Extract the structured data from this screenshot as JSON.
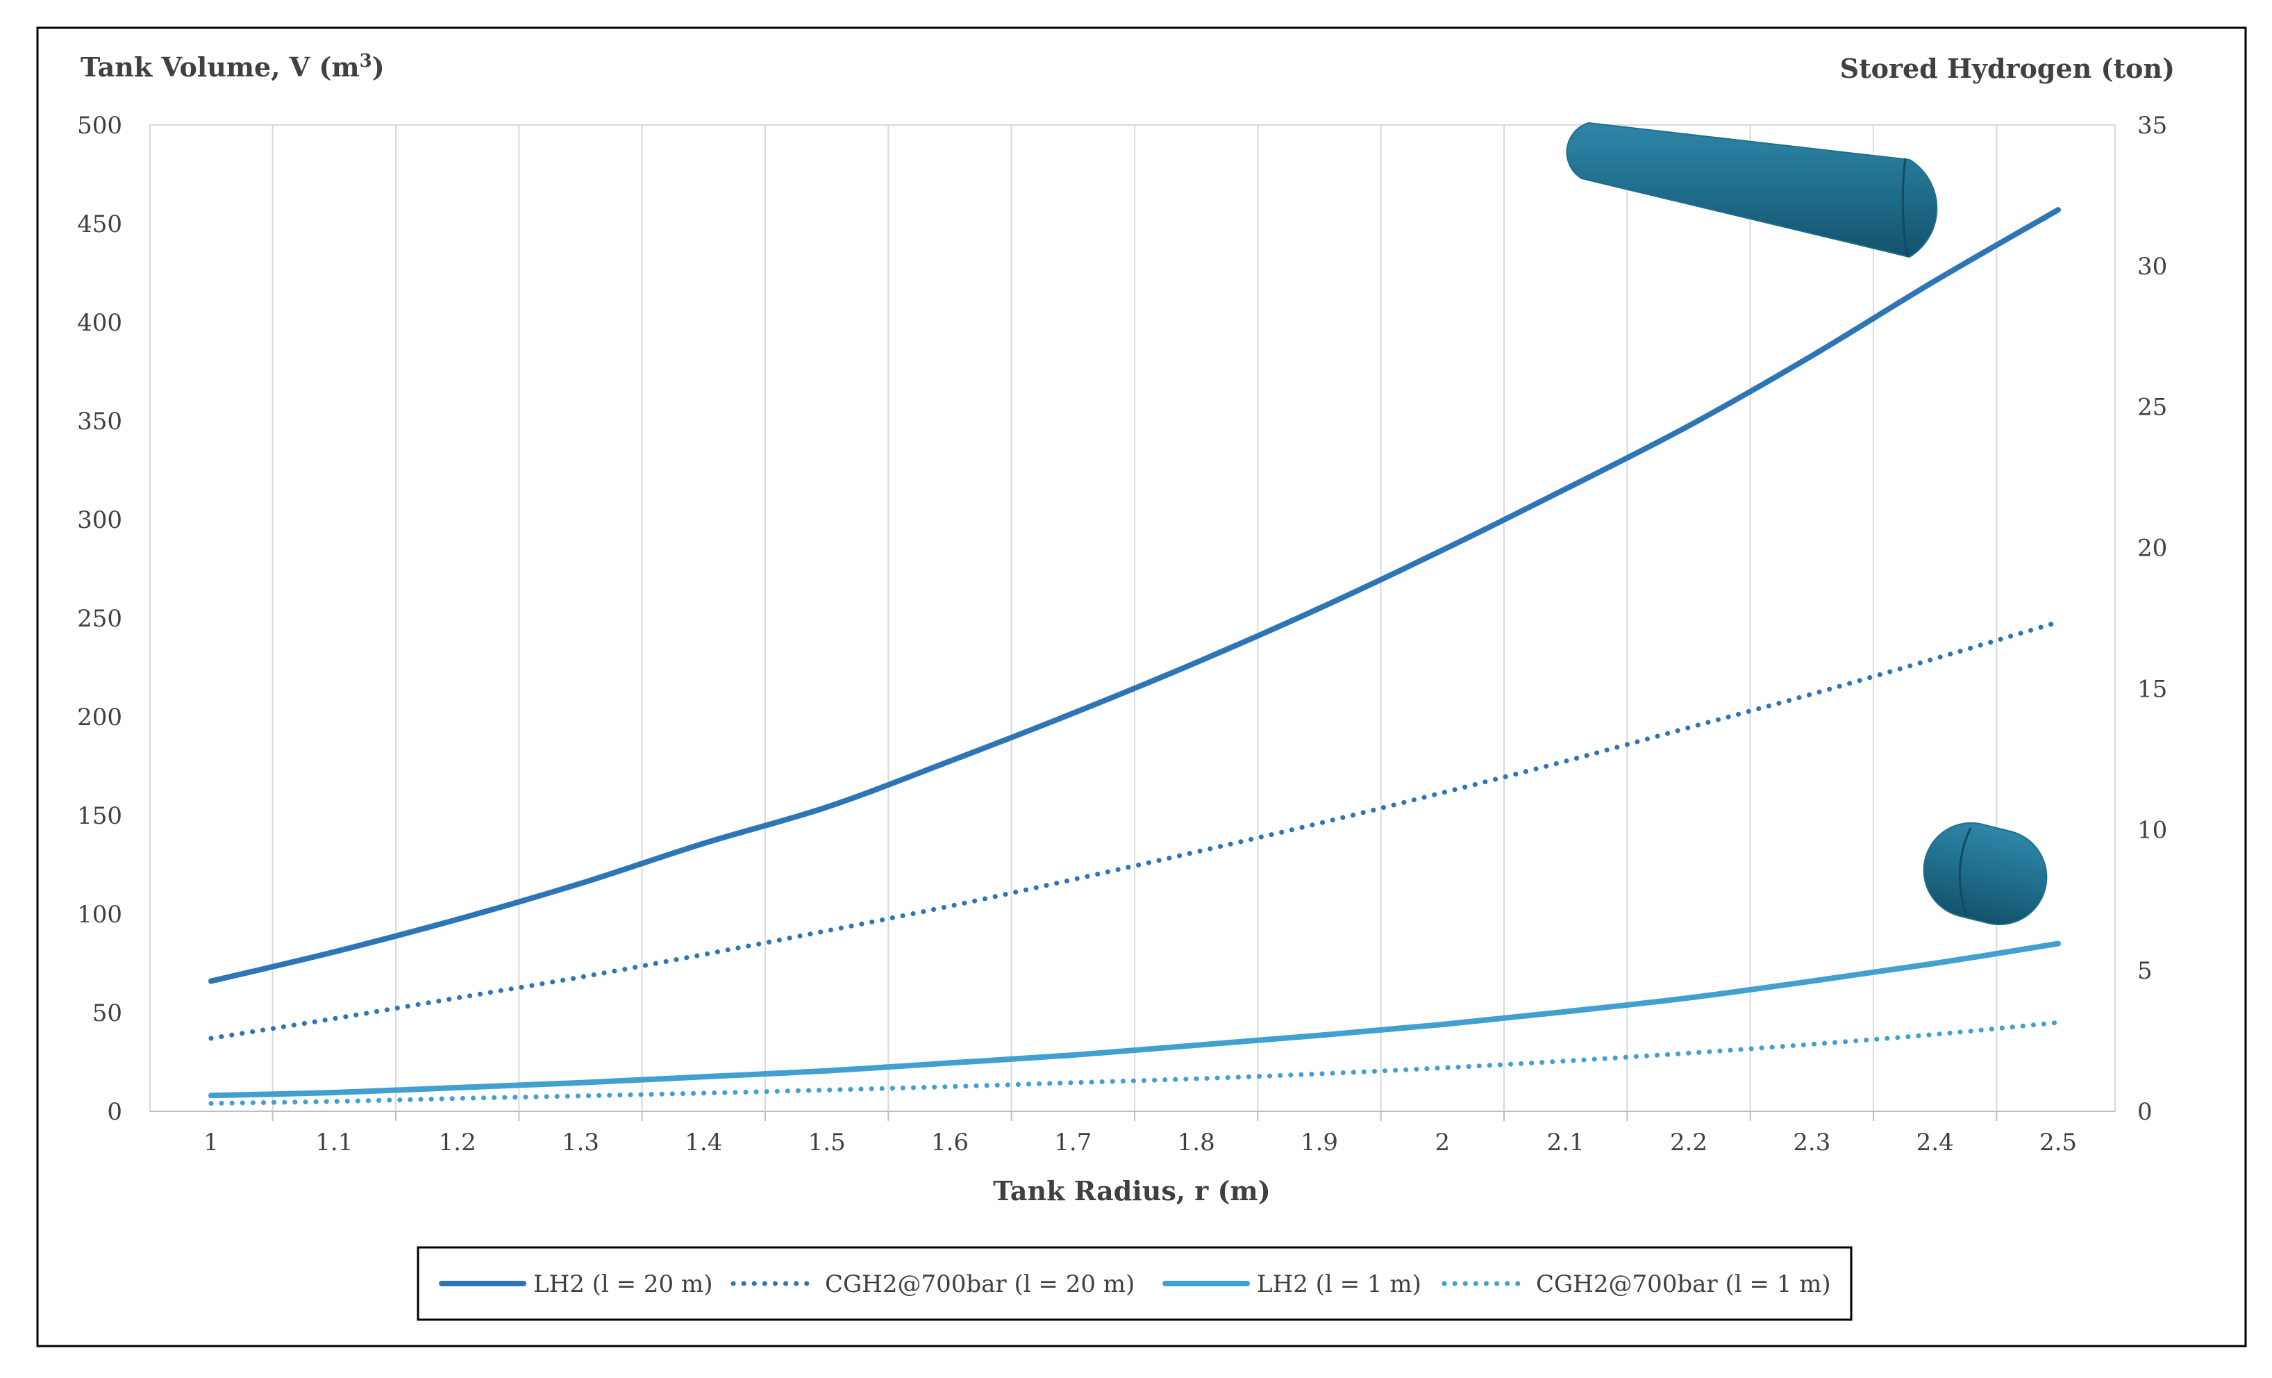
{
  "chart_data": {
    "type": "line",
    "ylabel_left": "Tank Volume, V (m",
    "ylabel_left_sup": "3",
    "ylabel_left_close": ")",
    "ylabel_right": "Stored Hydrogen (ton)",
    "xlabel": "Tank Radius, r (m)",
    "x": [
      1,
      1.1,
      1.2,
      1.3,
      1.4,
      1.5,
      1.6,
      1.7,
      1.8,
      1.9,
      2,
      2.1,
      2.2,
      2.3,
      2.4,
      2.5
    ],
    "x_tick_labels": [
      "1",
      "1.1",
      "1.2",
      "1.3",
      "1.4",
      "1.5",
      "1.6",
      "1.7",
      "1.8",
      "1.9",
      "2",
      "2.1",
      "2.2",
      "2.3",
      "2.4",
      "2.5"
    ],
    "ylim_left": [
      0,
      500
    ],
    "ylim_right": [
      0,
      35
    ],
    "y_left_ticks": [
      0,
      50,
      100,
      150,
      200,
      250,
      300,
      350,
      400,
      450,
      500
    ],
    "y_right_ticks": [
      0,
      5,
      10,
      15,
      20,
      25,
      30,
      35
    ],
    "grid": "vertical",
    "legend_position": "bottom",
    "series": [
      {
        "name": "LH2 (l = 20 m)",
        "style": "solid",
        "color": "#2e75b6",
        "values": [
          66.0,
          80.8,
          97.3,
          115.5,
          135.8,
          154.2,
          177.5,
          201.8,
          227.5,
          255.0,
          284.5,
          315.5,
          347.5,
          383.0,
          421.0,
          457.0
        ]
      },
      {
        "name": "CGH2@700bar (l = 20 m)",
        "style": "dotted",
        "color": "#2e75b6",
        "values": [
          37.0,
          47.0,
          57.5,
          68.0,
          79.5,
          91.5,
          104.0,
          117.5,
          131.5,
          146.0,
          161.5,
          177.5,
          194.5,
          211.5,
          229.5,
          248.0
        ]
      },
      {
        "name": "LH2 (l = 1 m)",
        "style": "solid",
        "color": "#41a0d0",
        "values": [
          8.0,
          9.5,
          12.0,
          14.5,
          17.5,
          20.5,
          24.5,
          28.5,
          33.5,
          38.5,
          44.0,
          50.5,
          57.5,
          66.0,
          75.0,
          85.0
        ]
      },
      {
        "name": "CGH2@700bar (l = 1 m)",
        "style": "dotted",
        "color": "#41a0d0",
        "values": [
          4.0,
          5.0,
          6.5,
          7.8,
          9.2,
          10.8,
          12.5,
          14.5,
          16.5,
          19.0,
          22.0,
          25.5,
          29.5,
          34.0,
          39.0,
          45.0
        ]
      }
    ]
  },
  "colors": {
    "tank_body": "#1f6e8c",
    "tank_edge": "#124a60",
    "frame": "#000000"
  }
}
